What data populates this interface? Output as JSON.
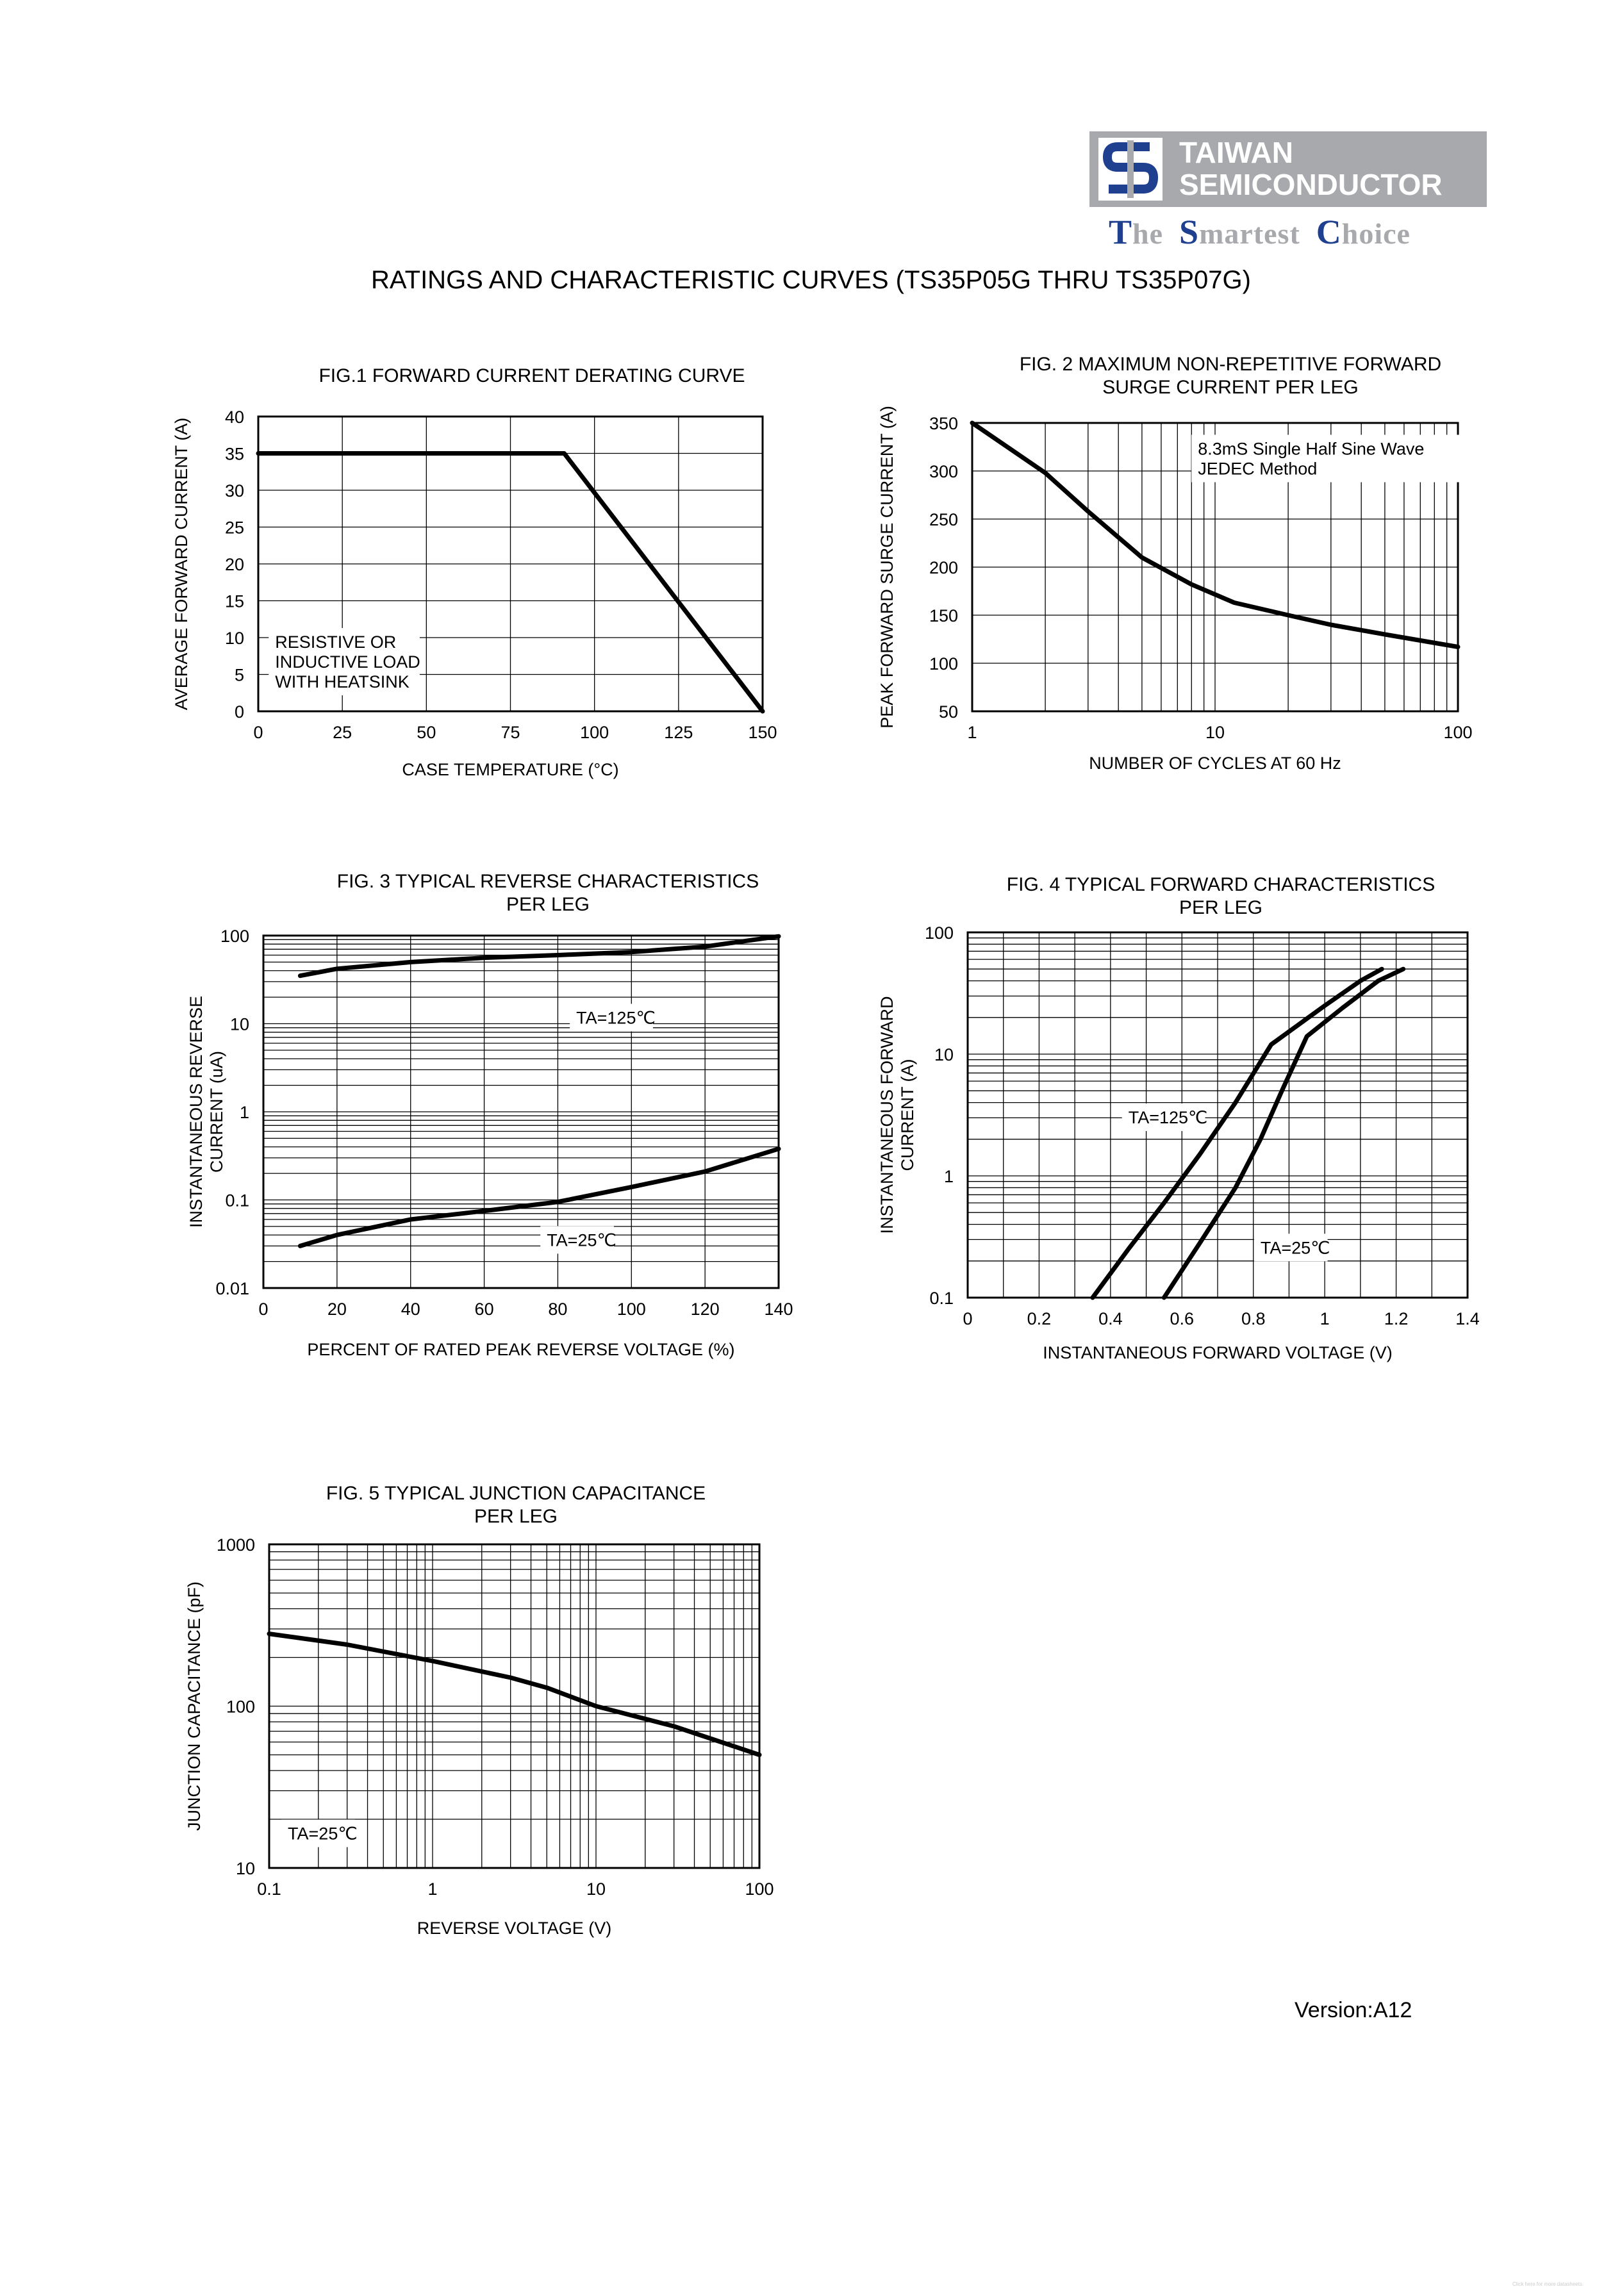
{
  "header": {
    "logo_line1": "TAIWAN",
    "logo_line2": "SEMICONDUCTOR",
    "tagline": [
      "The",
      "Smartest",
      "Choice"
    ],
    "brand_gray": "#a7a9ac",
    "brand_blue": "#1f3f8f",
    "logo_icon": "ts-logo-icon"
  },
  "title": "RATINGS AND CHARACTERISTIC CURVES (TS35P05G THRU TS35P07G)",
  "version": "Version:A12",
  "footer_note": "Click here for more datasheets",
  "chart_data": [
    {
      "id": "fig1",
      "type": "line",
      "title": "FIG.1 FORWARD CURRENT DERATING CURVE",
      "xlabel": "CASE TEMPERATURE (°C)",
      "ylabel": "AVERAGE FORWARD CURRENT (A)",
      "xscale": "linear",
      "yscale": "linear",
      "xlim": [
        0,
        150
      ],
      "ylim": [
        0,
        40
      ],
      "xticks": [
        0,
        25,
        50,
        75,
        100,
        125,
        150
      ],
      "yticks": [
        0,
        5,
        10,
        15,
        20,
        25,
        30,
        35,
        40
      ],
      "grid": true,
      "series": [
        {
          "name": "derating",
          "x": [
            0,
            91,
            150
          ],
          "y": [
            35,
            35,
            0
          ]
        }
      ],
      "annotations": [
        {
          "text": [
            "RESISTIVE OR",
            "INDUCTIVE LOAD",
            "WITH HEATSINK"
          ],
          "at": [
            5,
            8.6
          ]
        }
      ]
    },
    {
      "id": "fig2",
      "type": "line",
      "title": [
        "FIG. 2 MAXIMUM  NON-REPETITIVE FORWARD",
        "SURGE CURRENT PER LEG"
      ],
      "xlabel": "NUMBER OF CYCLES AT 60 Hz",
      "ylabel": "PEAK FORWARD SURGE  CURRENT (A)",
      "xscale": "log",
      "yscale": "linear",
      "xlim": [
        1,
        100
      ],
      "ylim": [
        50,
        350
      ],
      "xticks": [
        1,
        10,
        100
      ],
      "yticks": [
        50,
        100,
        150,
        200,
        250,
        300,
        350
      ],
      "grid": true,
      "series": [
        {
          "name": "surge",
          "x": [
            1,
            2,
            3,
            5,
            8,
            12,
            20,
            30,
            50,
            100
          ],
          "y": [
            350,
            298,
            258,
            210,
            182,
            163,
            150,
            140,
            130,
            117
          ]
        }
      ],
      "annotations": [
        {
          "text": [
            "8.3mS Single Half Sine Wave",
            "JEDEC Method"
          ],
          "at": [
            8.5,
            317
          ]
        }
      ]
    },
    {
      "id": "fig3",
      "type": "line",
      "title": [
        "FIG. 3 TYPICAL REVERSE CHARACTERISTICS",
        "PER LEG"
      ],
      "xlabel": "PERCENT OF RATED PEAK REVERSE VOLTAGE (%)",
      "ylabel": [
        "INSTANTANEOUS REVERSE",
        "CURRENT (uA)"
      ],
      "xscale": "linear",
      "yscale": "log",
      "xlim": [
        0,
        140
      ],
      "ylim": [
        0.01,
        100
      ],
      "xticks": [
        0,
        20,
        40,
        60,
        80,
        100,
        120,
        140
      ],
      "yticks": [
        0.01,
        0.1,
        1,
        10,
        100
      ],
      "ytick_labels": [
        "0.01",
        "0.1",
        "1",
        "10",
        "100"
      ],
      "grid": true,
      "series": [
        {
          "name": "TA=125℃",
          "x": [
            10,
            20,
            40,
            60,
            80,
            100,
            120,
            140
          ],
          "y": [
            35,
            42,
            50,
            56,
            60,
            65,
            75,
            98
          ]
        },
        {
          "name": "TA=25℃",
          "x": [
            10,
            20,
            40,
            60,
            80,
            100,
            120,
            140
          ],
          "y": [
            0.03,
            0.04,
            0.06,
            0.075,
            0.095,
            0.14,
            0.21,
            0.38
          ]
        }
      ],
      "annotations": [
        {
          "text": "TA=125℃",
          "at": [
            85,
            10
          ]
        },
        {
          "text": "TA=25℃",
          "at": [
            77,
            0.03
          ]
        }
      ]
    },
    {
      "id": "fig4",
      "type": "line",
      "title": [
        "FIG. 4 TYPICAL FORWARD CHARACTERISTICS",
        "PER LEG"
      ],
      "xlabel": "INSTANTANEOUS FORWARD VOLTAGE (V)",
      "ylabel": [
        "INSTANTANEOUS FORWARD",
        "CURRENT (A)"
      ],
      "xscale": "linear",
      "yscale": "log",
      "xlim": [
        0,
        1.4
      ],
      "ylim": [
        0.1,
        100
      ],
      "xticks": [
        0,
        0.2,
        0.4,
        0.6,
        0.8,
        1,
        1.2,
        1.4
      ],
      "xtick_labels": [
        "0",
        "0.2",
        "0.4",
        "0.6",
        "0.8",
        "1",
        "1.2",
        "1.4"
      ],
      "yticks": [
        0.1,
        1,
        10,
        100
      ],
      "ytick_labels": [
        "0.1",
        "1",
        "10",
        "100"
      ],
      "grid": true,
      "series": [
        {
          "name": "TA=125℃",
          "x": [
            0.35,
            0.45,
            0.55,
            0.65,
            0.75,
            0.85,
            1.0,
            1.1,
            1.16
          ],
          "y": [
            0.1,
            0.25,
            0.6,
            1.5,
            4,
            12,
            25,
            40,
            50
          ]
        },
        {
          "name": "TA=25℃",
          "x": [
            0.55,
            0.65,
            0.75,
            0.82,
            0.88,
            0.95,
            1.05,
            1.15,
            1.22
          ],
          "y": [
            0.1,
            0.28,
            0.8,
            2,
            5,
            14,
            24,
            40,
            50
          ]
        }
      ],
      "annotations": [
        {
          "text": "TA=125℃",
          "at": [
            0.45,
            2.7
          ]
        },
        {
          "text": "TA=25℃",
          "at": [
            0.82,
            0.23
          ]
        }
      ]
    },
    {
      "id": "fig5",
      "type": "line",
      "title": [
        "FIG. 5 TYPICAL JUNCTION CAPACITANCE",
        "PER LEG"
      ],
      "xlabel": "REVERSE VOLTAGE (V)",
      "ylabel": "JUNCTION CAPACITANCE (pF)",
      "xscale": "log",
      "yscale": "log",
      "xlim": [
        0.1,
        100
      ],
      "ylim": [
        10,
        1000
      ],
      "xticks": [
        0.1,
        1,
        10,
        100
      ],
      "xtick_labels": [
        "0.1",
        "1",
        "10",
        "100"
      ],
      "yticks": [
        10,
        100,
        1000
      ],
      "ytick_labels": [
        "10",
        "100",
        "1000"
      ],
      "grid": true,
      "series": [
        {
          "name": "TA=25℃",
          "x": [
            0.1,
            0.3,
            1,
            3,
            5,
            10,
            30,
            100
          ],
          "y": [
            280,
            240,
            190,
            150,
            130,
            100,
            75,
            50
          ]
        }
      ],
      "annotations": [
        {
          "text": "TA=25℃",
          "at": [
            0.13,
            15
          ]
        }
      ]
    }
  ]
}
